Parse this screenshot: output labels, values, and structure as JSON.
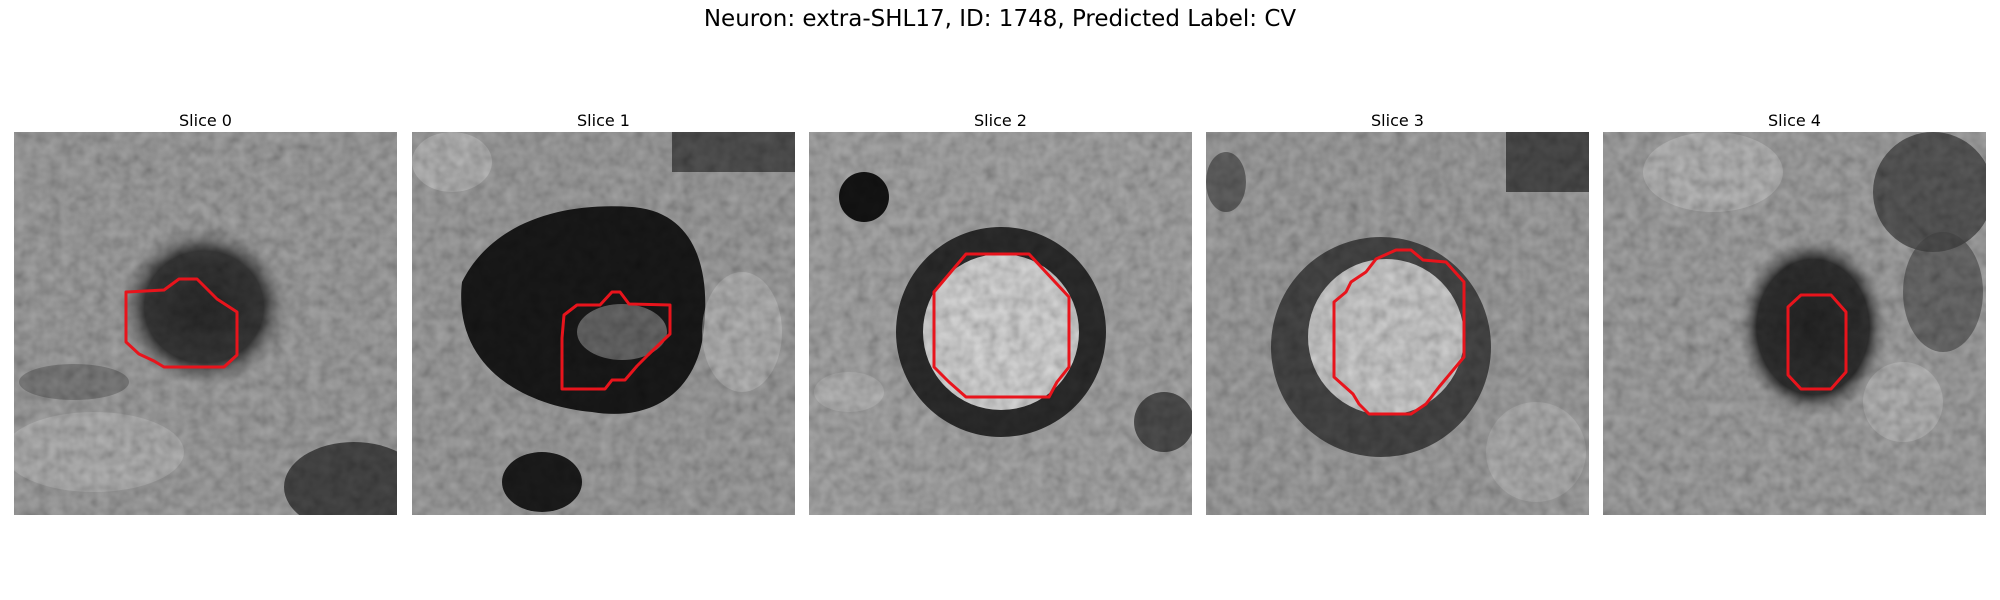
{
  "figure": {
    "title": "Neuron: extra-SHL17, ID: 1748, Predicted Label: CV"
  },
  "panels": [
    {
      "title": "Slice 0"
    },
    {
      "title": "Slice 1"
    },
    {
      "title": "Slice 2"
    },
    {
      "title": "Slice 3"
    },
    {
      "title": "Slice 4"
    }
  ],
  "colors": {
    "background": "#ffffff",
    "contour": "#e8141c",
    "text": "#000000"
  }
}
